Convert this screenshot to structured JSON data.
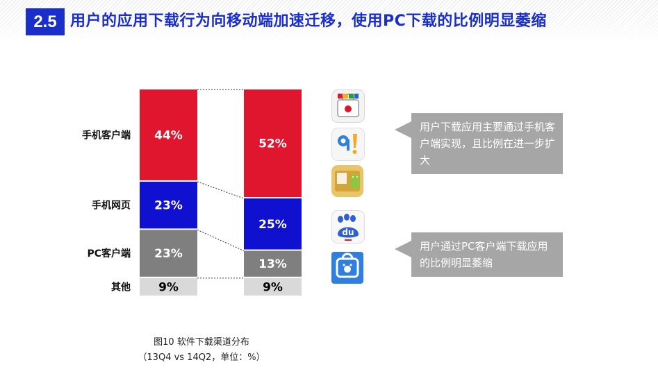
{
  "header": {
    "section_number": "2.5",
    "title": "用户的应用下载行为向移动端加速迁移，使用PC下载的比例明显萎缩"
  },
  "chart_data": {
    "type": "bar",
    "stacked": true,
    "percent_stacked": true,
    "categories": [
      "13Q4",
      "14Q2"
    ],
    "series": [
      {
        "name": "手机客户端",
        "values": [
          44,
          52
        ],
        "labels": [
          "44%",
          "52%"
        ],
        "color": "#e0152e",
        "text_color": "#ffffff"
      },
      {
        "name": "手机网页",
        "values": [
          23,
          25
        ],
        "labels": [
          "23%",
          "25%"
        ],
        "color": "#1010d0",
        "text_color": "#ffffff"
      },
      {
        "name": "PC客户端",
        "values": [
          23,
          13
        ],
        "labels": [
          "23%",
          "13%"
        ],
        "color": "#7f7f7f",
        "text_color": "#ffffff"
      },
      {
        "name": "其他",
        "values": [
          9,
          9
        ],
        "labels": [
          "9%",
          "9%"
        ],
        "color": "#d9d9d9",
        "text_color": "#000000"
      }
    ],
    "caption": "图10 软件下载渠道分布",
    "subcaption": "（13Q4 vs 14Q2，单位：%）",
    "legend": "left",
    "grid": false
  },
  "callouts": [
    {
      "text": "用户下载应用主要通过手机客户端实现，且比例在进一步扩大"
    },
    {
      "text": "用户通过PC客户端下载应用的比例明显萎缩"
    }
  ],
  "icons": [
    "baidu-app-store-icon",
    "pp-assistant-icon",
    "android-market-icon",
    "baidu-mobile-assistant-icon",
    "baidu-pc-assistant-icon"
  ]
}
